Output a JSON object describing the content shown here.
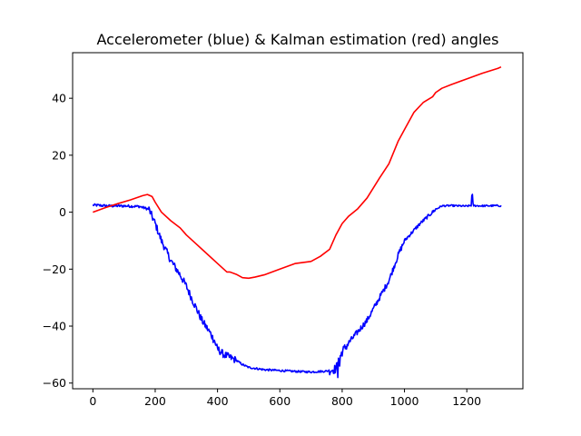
{
  "chart_data": {
    "type": "line",
    "title": "Accelerometer (blue) & Kalman estimation (red) angles",
    "xlabel": "",
    "ylabel": "",
    "xlim": [
      -65,
      1380
    ],
    "ylim": [
      -62,
      56
    ],
    "xticks": [
      0,
      200,
      400,
      600,
      800,
      1000,
      1200
    ],
    "xtick_labels": [
      "0",
      "200",
      "400",
      "600",
      "800",
      "1000",
      "1200"
    ],
    "yticks": [
      -60,
      -40,
      -20,
      0,
      20,
      40
    ],
    "ytick_labels": [
      "−60",
      "−40",
      "−20",
      "0",
      "20",
      "40"
    ],
    "grid": false,
    "series": [
      {
        "name": "Accelerometer",
        "color": "#0000ff",
        "noisy": true,
        "x": [
          0,
          50,
          100,
          150,
          180,
          200,
          220,
          250,
          280,
          300,
          320,
          350,
          380,
          400,
          420,
          440,
          460,
          480,
          500,
          550,
          600,
          650,
          700,
          750,
          780,
          790,
          800,
          820,
          850,
          880,
          900,
          920,
          950,
          980,
          1000,
          1050,
          1100,
          1120,
          1150,
          1200,
          1215,
          1217,
          1219,
          1222,
          1250,
          1300,
          1310
        ],
        "y": [
          2.5,
          2.2,
          2.2,
          2.0,
          1.0,
          -4,
          -10,
          -17,
          -22,
          -26,
          -31,
          -38,
          -43,
          -48,
          -50,
          -51,
          -52,
          -53.5,
          -54.5,
          -55.3,
          -55.6,
          -55.9,
          -56.1,
          -55.8,
          -55,
          -52,
          -49,
          -46,
          -42,
          -38,
          -34,
          -30,
          -24,
          -15,
          -10,
          -4,
          1.0,
          2.2,
          2.3,
          2.1,
          2.4,
          9.0,
          3,
          2.3,
          2.2,
          2.3,
          2.2
        ]
      },
      {
        "name": "Kalman estimation",
        "color": "#ff0000",
        "noisy": false,
        "x": [
          0,
          40,
          80,
          120,
          160,
          175,
          190,
          200,
          220,
          250,
          280,
          300,
          330,
          360,
          400,
          430,
          440,
          460,
          480,
          500,
          520,
          550,
          600,
          650,
          700,
          730,
          760,
          780,
          800,
          820,
          850,
          880,
          920,
          950,
          980,
          1000,
          1030,
          1060,
          1090,
          1100,
          1120,
          1150,
          1200,
          1250,
          1300,
          1310
        ],
        "y": [
          0,
          1.6,
          3.0,
          4.3,
          5.8,
          6.2,
          5.5,
          3.5,
          0,
          -3,
          -5.5,
          -8,
          -11,
          -14,
          -18,
          -21,
          -21,
          -21.8,
          -23,
          -23.2,
          -22.8,
          -22,
          -20,
          -18,
          -17.3,
          -15.5,
          -13,
          -8,
          -4,
          -1.5,
          1.2,
          5,
          12,
          17,
          25,
          29,
          35,
          38.5,
          40.5,
          42,
          43.5,
          44.8,
          46.8,
          48.8,
          50.5,
          51
        ]
      }
    ]
  }
}
